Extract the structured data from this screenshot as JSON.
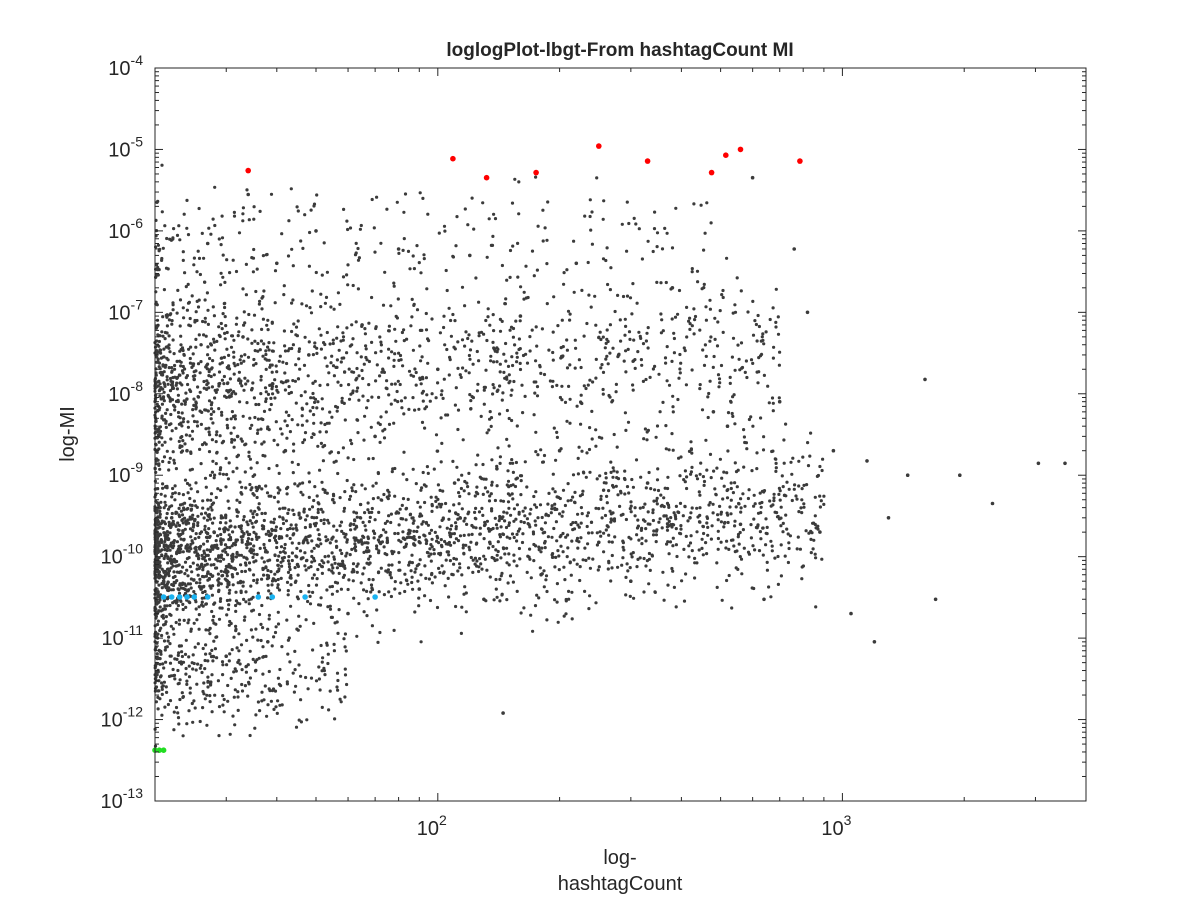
{
  "chart_data": {
    "type": "scatter",
    "title": "loglogPlot-lbgt-From hashtagCount MI",
    "xlabel": "log-",
    "xlabel_line2": "hashtagCount",
    "ylabel": "log-MI",
    "x_scale": "log",
    "y_scale": "log",
    "xlim": [
      20,
      4000
    ],
    "ylim": [
      1e-13,
      0.0001
    ],
    "grid": false,
    "legend": "none",
    "x_ticks": [
      {
        "value": 100,
        "base": "10",
        "exp": "2"
      },
      {
        "value": 1000,
        "base": "10",
        "exp": "3"
      }
    ],
    "y_ticks": [
      {
        "value": 1e-13,
        "base": "10",
        "exp": "-13"
      },
      {
        "value": 1e-12,
        "base": "10",
        "exp": "-12"
      },
      {
        "value": 1e-11,
        "base": "10",
        "exp": "-11"
      },
      {
        "value": 1e-10,
        "base": "10",
        "exp": "-10"
      },
      {
        "value": 1e-09,
        "base": "10",
        "exp": "-9"
      },
      {
        "value": 1e-08,
        "base": "10",
        "exp": "-8"
      },
      {
        "value": 1e-07,
        "base": "10",
        "exp": "-7"
      },
      {
        "value": 1e-06,
        "base": "10",
        "exp": "-6"
      },
      {
        "value": 1e-05,
        "base": "10",
        "exp": "-5"
      },
      {
        "value": 0.0001,
        "base": "10",
        "exp": "-4"
      }
    ],
    "series": [
      {
        "color": "#3b3b3b",
        "style": "dense-cloud",
        "points": [
          [
            21,
            5e-11
          ],
          [
            22,
            3e-10
          ],
          [
            23,
            8e-12
          ],
          [
            24,
            2e-09
          ],
          [
            25,
            1.5e-08
          ],
          [
            26,
            4e-11
          ],
          [
            27,
            7e-07
          ],
          [
            28,
            2e-10
          ],
          [
            30,
            6e-12
          ],
          [
            32,
            3e-09
          ],
          [
            33,
            5e-08
          ],
          [
            34,
            2.8e-06
          ],
          [
            35,
            1.2e-10
          ],
          [
            38,
            9e-12
          ],
          [
            40,
            4e-07
          ],
          [
            42,
            2e-09
          ],
          [
            45,
            8e-11
          ],
          [
            48,
            3e-08
          ],
          [
            50,
            1e-06
          ],
          [
            55,
            5e-10
          ],
          [
            60,
            2e-11
          ],
          [
            65,
            7e-08
          ],
          [
            70,
            3e-09
          ],
          [
            75,
            1.5e-10
          ],
          [
            80,
            6e-07
          ],
          [
            90,
            4e-11
          ],
          [
            100,
            2e-08
          ],
          [
            110,
            8e-10
          ],
          [
            120,
            5e-07
          ],
          [
            130,
            3e-11
          ],
          [
            140,
            1.2e-09
          ],
          [
            145,
            1.2e-12
          ],
          [
            160,
            9e-08
          ],
          [
            180,
            6e-11
          ],
          [
            200,
            2e-09
          ],
          [
            220,
            4e-07
          ],
          [
            250,
            1.5e-10
          ],
          [
            280,
            3e-08
          ],
          [
            300,
            5e-11
          ],
          [
            330,
            8e-10
          ],
          [
            380,
            2e-07
          ],
          [
            420,
            3e-10
          ],
          [
            480,
            6e-09
          ],
          [
            520,
            4e-09
          ],
          [
            560,
            2.5e-10
          ],
          [
            600,
            4.5e-06
          ],
          [
            640,
            3e-11
          ],
          [
            700,
            8e-09
          ],
          [
            760,
            6e-07
          ],
          [
            820,
            1e-07
          ],
          [
            880,
            2e-10
          ],
          [
            950,
            2e-09
          ],
          [
            1050,
            2e-11
          ],
          [
            1150,
            1.5e-09
          ],
          [
            1200,
            9e-12
          ],
          [
            1300,
            3e-10
          ],
          [
            1450,
            1e-09
          ],
          [
            1600,
            1.5e-08
          ],
          [
            1700,
            3e-11
          ],
          [
            1950,
            1e-09
          ],
          [
            2350,
            4.5e-10
          ],
          [
            3050,
            1.4e-09
          ],
          [
            3550,
            1.4e-09
          ]
        ]
      },
      {
        "color": "#ff0000",
        "points": [
          [
            34,
            5.5e-06
          ],
          [
            109,
            7.7e-06
          ],
          [
            132,
            4.5e-06
          ],
          [
            175,
            5.2e-06
          ],
          [
            250,
            1.1e-05
          ],
          [
            330,
            7.2e-06
          ],
          [
            475,
            5.2e-06
          ],
          [
            515,
            8.5e-06
          ],
          [
            560,
            1e-05
          ],
          [
            785,
            7.2e-06
          ]
        ]
      },
      {
        "color": "#1ab2f0",
        "points": [
          [
            21,
            3.2e-11
          ],
          [
            22,
            3.2e-11
          ],
          [
            23,
            3.2e-11
          ],
          [
            24,
            3.2e-11
          ],
          [
            25,
            3.2e-11
          ],
          [
            27,
            3.2e-11
          ],
          [
            36,
            3.2e-11
          ],
          [
            39,
            3.2e-11
          ],
          [
            47,
            3.2e-11
          ],
          [
            70,
            3.2e-11
          ]
        ]
      },
      {
        "color": "#22dd22",
        "points": [
          [
            20,
            4.2e-13
          ],
          [
            20.5,
            4.2e-13
          ],
          [
            21,
            4.2e-13
          ]
        ]
      }
    ]
  }
}
